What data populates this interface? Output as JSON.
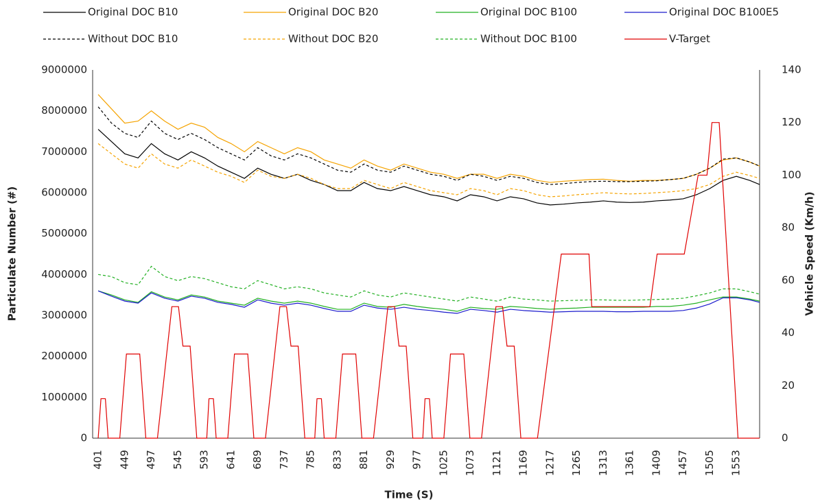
{
  "chart_data": {
    "type": "line",
    "x_label": "Time (S)",
    "y_label": "Particulate Number (#)",
    "y2_label": "Vehicle Speed (Km/h)",
    "xlim": [
      391,
      1595
    ],
    "xticks": [
      401,
      449,
      497,
      545,
      593,
      641,
      689,
      737,
      785,
      833,
      881,
      929,
      977,
      1025,
      1073,
      1121,
      1169,
      1217,
      1265,
      1313,
      1361,
      1409,
      1457,
      1505,
      1553
    ],
    "ylim": [
      0,
      9000000
    ],
    "yticks": [
      0,
      1000000,
      2000000,
      3000000,
      4000000,
      5000000,
      6000000,
      7000000,
      8000000,
      9000000
    ],
    "y2lim": [
      0,
      140
    ],
    "y2ticks": [
      0,
      20,
      40,
      60,
      80,
      100,
      120,
      140
    ],
    "grid": false,
    "x": [
      401,
      425,
      449,
      473,
      497,
      521,
      545,
      569,
      593,
      617,
      641,
      665,
      689,
      713,
      737,
      761,
      785,
      809,
      833,
      857,
      881,
      905,
      929,
      953,
      977,
      1001,
      1025,
      1049,
      1073,
      1097,
      1121,
      1145,
      1169,
      1193,
      1217,
      1241,
      1265,
      1289,
      1313,
      1337,
      1361,
      1385,
      1409,
      1433,
      1457,
      1481,
      1505,
      1529,
      1553,
      1577,
      1595
    ],
    "series": [
      {
        "name": "Original DOC B10",
        "color": "#000000",
        "dash": false,
        "values": [
          7550000,
          7250000,
          6950000,
          6850000,
          7200000,
          6950000,
          6800000,
          7000000,
          6850000,
          6650000,
          6500000,
          6350000,
          6600000,
          6450000,
          6350000,
          6450000,
          6300000,
          6200000,
          6050000,
          6050000,
          6250000,
          6100000,
          6050000,
          6150000,
          6050000,
          5950000,
          5900000,
          5800000,
          5950000,
          5900000,
          5800000,
          5900000,
          5850000,
          5750000,
          5700000,
          5720000,
          5750000,
          5770000,
          5800000,
          5770000,
          5760000,
          5770000,
          5800000,
          5820000,
          5850000,
          5950000,
          6100000,
          6300000,
          6400000,
          6300000,
          6200000
        ]
      },
      {
        "name": "Original DOC B20",
        "color": "#f5a300",
        "dash": false,
        "values": [
          8400000,
          8050000,
          7700000,
          7750000,
          8000000,
          7750000,
          7550000,
          7700000,
          7600000,
          7350000,
          7200000,
          7000000,
          7250000,
          7100000,
          6950000,
          7100000,
          7000000,
          6800000,
          6700000,
          6600000,
          6800000,
          6650000,
          6550000,
          6700000,
          6600000,
          6500000,
          6450000,
          6350000,
          6450000,
          6450000,
          6350000,
          6450000,
          6400000,
          6300000,
          6250000,
          6280000,
          6300000,
          6320000,
          6330000,
          6300000,
          6280000,
          6300000,
          6300000,
          6320000,
          6350000,
          6450000,
          6600000,
          6800000,
          6850000,
          6750000,
          6650000
        ]
      },
      {
        "name": "Original DOC B100",
        "color": "#22b022",
        "dash": false,
        "values": [
          3600000,
          3500000,
          3380000,
          3320000,
          3580000,
          3450000,
          3380000,
          3500000,
          3450000,
          3350000,
          3300000,
          3250000,
          3420000,
          3350000,
          3300000,
          3350000,
          3300000,
          3220000,
          3150000,
          3150000,
          3300000,
          3220000,
          3200000,
          3270000,
          3220000,
          3180000,
          3150000,
          3100000,
          3200000,
          3170000,
          3150000,
          3220000,
          3200000,
          3170000,
          3150000,
          3170000,
          3180000,
          3200000,
          3200000,
          3200000,
          3200000,
          3200000,
          3220000,
          3220000,
          3250000,
          3300000,
          3380000,
          3450000,
          3450000,
          3400000,
          3350000
        ]
      },
      {
        "name": "Original DOC B100E5",
        "color": "#1a1acc",
        "dash": false,
        "values": [
          3600000,
          3470000,
          3350000,
          3300000,
          3550000,
          3420000,
          3350000,
          3470000,
          3420000,
          3320000,
          3270000,
          3200000,
          3380000,
          3300000,
          3250000,
          3300000,
          3250000,
          3170000,
          3100000,
          3100000,
          3250000,
          3180000,
          3150000,
          3200000,
          3150000,
          3120000,
          3080000,
          3050000,
          3150000,
          3120000,
          3080000,
          3150000,
          3120000,
          3100000,
          3080000,
          3090000,
          3100000,
          3100000,
          3100000,
          3090000,
          3090000,
          3100000,
          3100000,
          3100000,
          3120000,
          3180000,
          3280000,
          3430000,
          3430000,
          3380000,
          3320000
        ]
      },
      {
        "name": "Without DOC B10",
        "color": "#000000",
        "dash": true,
        "values": [
          8100000,
          7700000,
          7450000,
          7350000,
          7750000,
          7450000,
          7300000,
          7450000,
          7300000,
          7100000,
          6950000,
          6800000,
          7100000,
          6900000,
          6800000,
          6950000,
          6850000,
          6700000,
          6550000,
          6500000,
          6700000,
          6550000,
          6500000,
          6650000,
          6550000,
          6450000,
          6400000,
          6300000,
          6450000,
          6400000,
          6300000,
          6400000,
          6350000,
          6250000,
          6200000,
          6220000,
          6250000,
          6270000,
          6280000,
          6270000,
          6270000,
          6280000,
          6290000,
          6320000,
          6350000,
          6450000,
          6600000,
          6820000,
          6850000,
          6750000,
          6650000
        ]
      },
      {
        "name": "Without DOC B20",
        "color": "#f5a300",
        "dash": true,
        "values": [
          7200000,
          6950000,
          6700000,
          6600000,
          6950000,
          6700000,
          6600000,
          6800000,
          6650000,
          6500000,
          6400000,
          6250000,
          6550000,
          6400000,
          6350000,
          6450000,
          6350000,
          6200000,
          6100000,
          6100000,
          6300000,
          6200000,
          6100000,
          6250000,
          6150000,
          6050000,
          6000000,
          5950000,
          6100000,
          6050000,
          5950000,
          6100000,
          6050000,
          5950000,
          5900000,
          5920000,
          5950000,
          5970000,
          6000000,
          5980000,
          5970000,
          5980000,
          6000000,
          6020000,
          6050000,
          6100000,
          6200000,
          6400000,
          6500000,
          6420000,
          6350000
        ]
      },
      {
        "name": "Without DOC B100",
        "color": "#22b022",
        "dash": true,
        "values": [
          4000000,
          3950000,
          3800000,
          3750000,
          4200000,
          3950000,
          3850000,
          3950000,
          3900000,
          3800000,
          3700000,
          3650000,
          3850000,
          3750000,
          3650000,
          3700000,
          3650000,
          3550000,
          3500000,
          3450000,
          3600000,
          3500000,
          3450000,
          3550000,
          3500000,
          3450000,
          3400000,
          3350000,
          3450000,
          3400000,
          3350000,
          3450000,
          3400000,
          3380000,
          3350000,
          3360000,
          3370000,
          3380000,
          3380000,
          3370000,
          3370000,
          3380000,
          3390000,
          3400000,
          3420000,
          3480000,
          3550000,
          3650000,
          3650000,
          3580000,
          3520000
        ]
      },
      {
        "name": "V-Target",
        "color": "#e00000",
        "dash": false,
        "axis": "y2",
        "x": [
          401,
          406,
          414,
          419,
          440,
          452,
          476,
          487,
          508,
          534,
          546,
          554,
          567,
          579,
          597,
          601,
          609,
          614,
          635,
          647,
          671,
          682,
          703,
          729,
          741,
          749,
          762,
          774,
          792,
          796,
          804,
          809,
          830,
          842,
          866,
          877,
          898,
          924,
          936,
          944,
          957,
          969,
          987,
          991,
          999,
          1004,
          1025,
          1037,
          1061,
          1072,
          1093,
          1119,
          1131,
          1139,
          1152,
          1164,
          1194,
          1237,
          1287,
          1292,
          1397,
          1410,
          1459,
          1484,
          1500,
          1509,
          1522,
          1556,
          1595
        ],
        "values": [
          0,
          15,
          15,
          0,
          0,
          32,
          32,
          0,
          0,
          50,
          50,
          35,
          35,
          0,
          0,
          15,
          15,
          0,
          0,
          32,
          32,
          0,
          0,
          50,
          50,
          35,
          35,
          0,
          0,
          15,
          15,
          0,
          0,
          32,
          32,
          0,
          0,
          50,
          50,
          35,
          35,
          0,
          0,
          15,
          15,
          0,
          0,
          32,
          32,
          0,
          0,
          50,
          50,
          35,
          35,
          0,
          0,
          70,
          70,
          50,
          50,
          70,
          70,
          100,
          100,
          120,
          120,
          0,
          0
        ]
      }
    ]
  }
}
